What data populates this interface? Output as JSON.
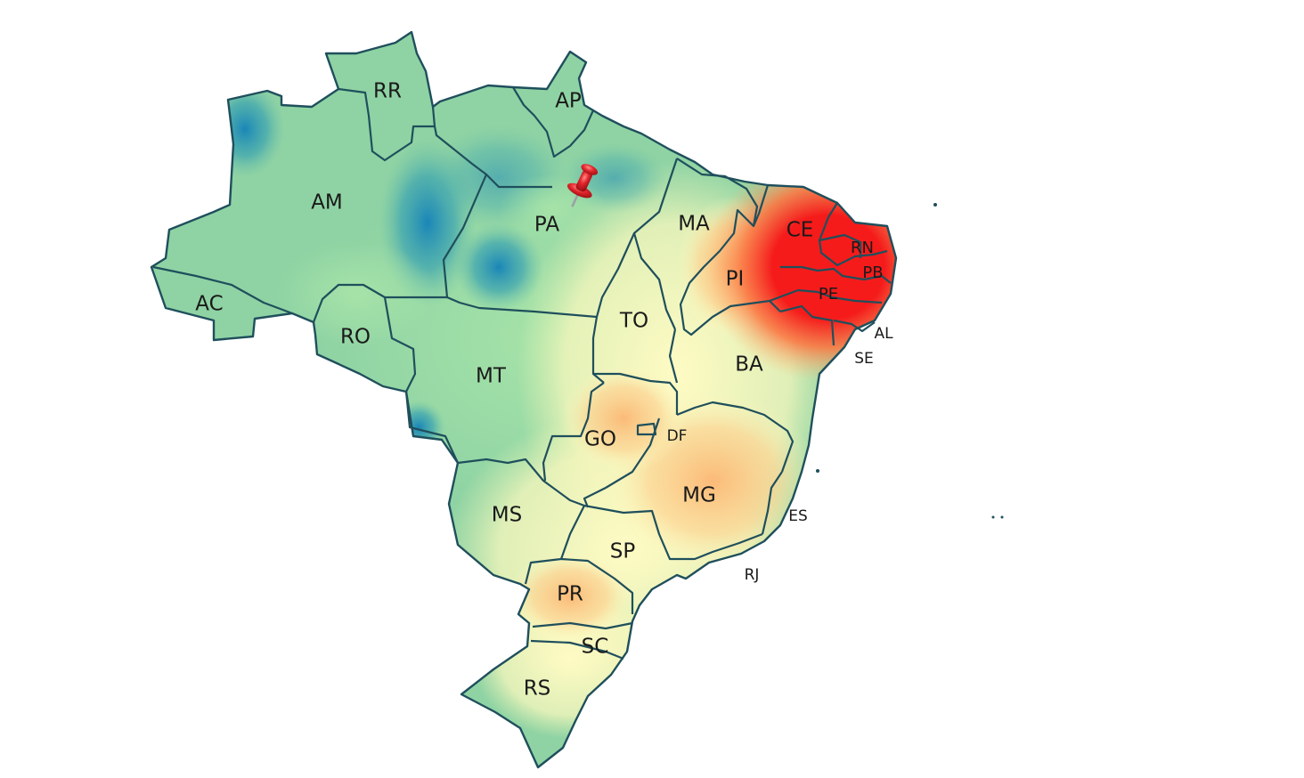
{
  "map": {
    "states": [
      {
        "code": "RR",
        "size": "big"
      },
      {
        "code": "AP",
        "size": "big"
      },
      {
        "code": "AM",
        "size": "big"
      },
      {
        "code": "PA",
        "size": "big"
      },
      {
        "code": "MA",
        "size": "big"
      },
      {
        "code": "CE",
        "size": "big"
      },
      {
        "code": "RN",
        "size": "mid"
      },
      {
        "code": "PB",
        "size": "mid"
      },
      {
        "code": "PI",
        "size": "big"
      },
      {
        "code": "PE",
        "size": "mid"
      },
      {
        "code": "AC",
        "size": "big"
      },
      {
        "code": "RO",
        "size": "big"
      },
      {
        "code": "TO",
        "size": "big"
      },
      {
        "code": "AL",
        "size": "small"
      },
      {
        "code": "SE",
        "size": "small"
      },
      {
        "code": "BA",
        "size": "big"
      },
      {
        "code": "MT",
        "size": "big"
      },
      {
        "code": "GO",
        "size": "big"
      },
      {
        "code": "DF",
        "size": "small"
      },
      {
        "code": "MG",
        "size": "big"
      },
      {
        "code": "ES",
        "size": "small"
      },
      {
        "code": "MS",
        "size": "big"
      },
      {
        "code": "SP",
        "size": "big"
      },
      {
        "code": "RJ",
        "size": "small"
      },
      {
        "code": "PR",
        "size": "big"
      },
      {
        "code": "SC",
        "size": "big"
      },
      {
        "code": "RS",
        "size": "big"
      }
    ],
    "colors": {
      "low": "#1a86b8",
      "mid_low": "#a6e3a8",
      "mid": "#fffbc4",
      "mid_high": "#fdbf7a",
      "high": "#f51b1b",
      "border": "#1f4f5c",
      "pin": "#e3262d"
    },
    "marker": {
      "icon": "pushpin-icon"
    }
  }
}
